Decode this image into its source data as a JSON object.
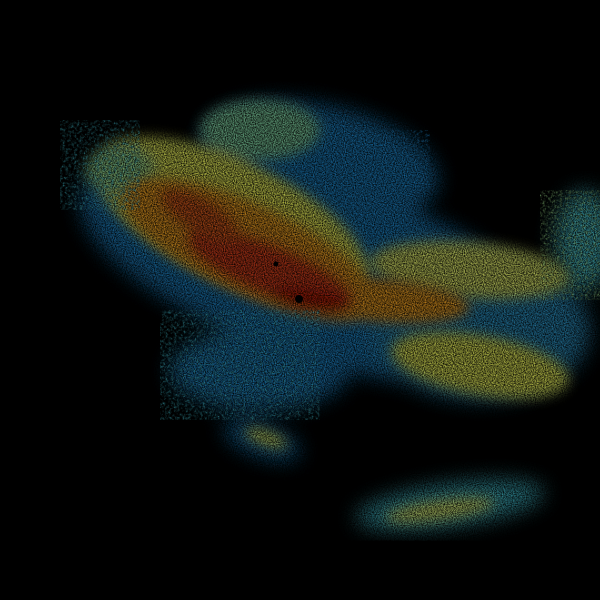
{
  "image": {
    "kind": "weather-radar-reflectivity",
    "background": "#000000",
    "palette": {
      "weak": "#1e7fc0",
      "light": "#3fb8c8",
      "moderate": "#e6ee5a",
      "strong": "#f0a020",
      "heavy": "#d8401a",
      "very_heavy": "#b81e10"
    },
    "radar_site_marker": "radar-site-icon"
  }
}
